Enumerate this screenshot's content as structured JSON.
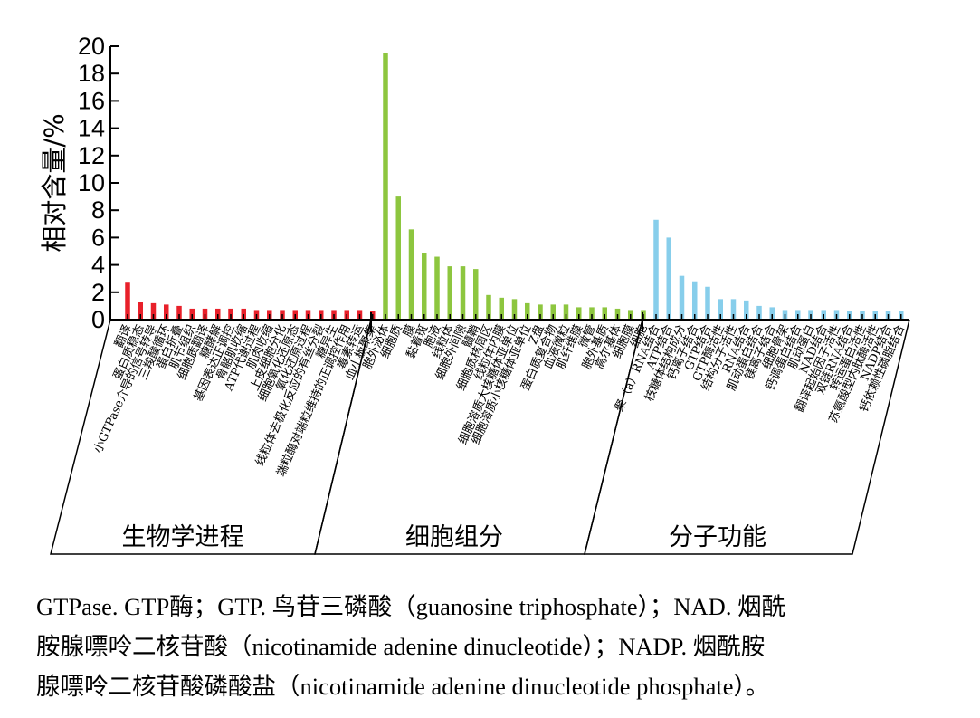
{
  "chart_data": {
    "type": "bar",
    "title": "",
    "xlabel": "",
    "ylabel": "相对含量/%",
    "ylim": [
      0,
      20
    ],
    "yticks": [
      "0",
      "2",
      "4",
      "6",
      "8",
      "10",
      "12",
      "14",
      "16",
      "18",
      "20"
    ],
    "groups": [
      {
        "name": "生物学进程",
        "color": "#e8202a",
        "categories": [
          "翻译",
          "蛋白质稳态",
          "小GTPase介导的信号转导",
          "三羧酸循环",
          "蛋白折叠",
          "肌节组织",
          "细胞质翻译",
          "糖酵解",
          "基因表达正调控",
          "骨骼肌收缩",
          "ATP代谢过程",
          "肌肉收缩",
          "上皮细胞分化",
          "细胞氧化还原态",
          "氧化还原过程",
          "线粒体去极化反应的有丝分裂",
          "糖异生",
          "端粒酶对端粒维持的正调控作用",
          "毒素转运",
          "血小板聚集"
        ],
        "values": [
          2.7,
          1.3,
          1.2,
          1.1,
          1.0,
          0.8,
          0.8,
          0.8,
          0.8,
          0.8,
          0.7,
          0.7,
          0.7,
          0.7,
          0.7,
          0.7,
          0.7,
          0.7,
          0.7,
          0.6
        ]
      },
      {
        "name": "细胞组分",
        "color": "#8dc63f",
        "categories": [
          "胞外泌体",
          "细胞质",
          "膜",
          "黏着斑",
          "胞液",
          "线粒体",
          "细胞外间隙",
          "髓鞘",
          "细胞质核周区",
          "线粒体内膜",
          "细胞溶质大核糖体亚单位",
          "细胞溶质小核糖体亚单位",
          "Z盘",
          "蛋白质复合物",
          "血液微粒",
          "肌纤维膜",
          "微管",
          "胞外基质",
          "高尔基体",
          "细胞膜",
          "细胞"
        ],
        "values": [
          19.5,
          9.0,
          6.6,
          4.9,
          4.6,
          3.9,
          3.9,
          3.7,
          1.8,
          1.6,
          1.5,
          1.2,
          1.1,
          1.1,
          1.1,
          0.9,
          0.9,
          0.9,
          0.8,
          0.7,
          0.7
        ]
      },
      {
        "name": "分子功能",
        "color": "#87ceeb",
        "categories": [
          "聚（a）RNA结合",
          "ATP结合",
          "核糖体结构成分",
          "钙离子结合",
          "GTP结合",
          "GTP酶活性",
          "结构分子活性",
          "RNA结合",
          "肌动蛋白结合",
          "镁离子结合",
          "细胞骨架",
          "钙调蛋白结合",
          "肌动蛋白",
          "NAD结合",
          "翻译起始因子活性",
          "双链RNA结合",
          "转运蛋白活性",
          "苏氨酸型内肽酶活性",
          "NADP结合",
          "钙依赖性磷脂结合"
        ],
        "values": [
          7.3,
          6.0,
          3.2,
          2.8,
          2.4,
          1.5,
          1.5,
          1.4,
          1.0,
          0.9,
          0.7,
          0.7,
          0.7,
          0.7,
          0.7,
          0.6,
          0.6,
          0.6,
          0.6,
          0.6
        ]
      }
    ]
  },
  "caption": {
    "line1": "GTPase. GTP酶；GTP. 鸟苷三磷酸（guanosine triphosphate）；NAD. 烟酰",
    "line2": "胺腺嘌呤二核苷酸（nicotinamide adenine dinucleotide）；NADP. 烟酰胺",
    "line3": "腺嘌呤二核苷酸磷酸盐（nicotinamide adenine dinucleotide phosphate）。"
  }
}
